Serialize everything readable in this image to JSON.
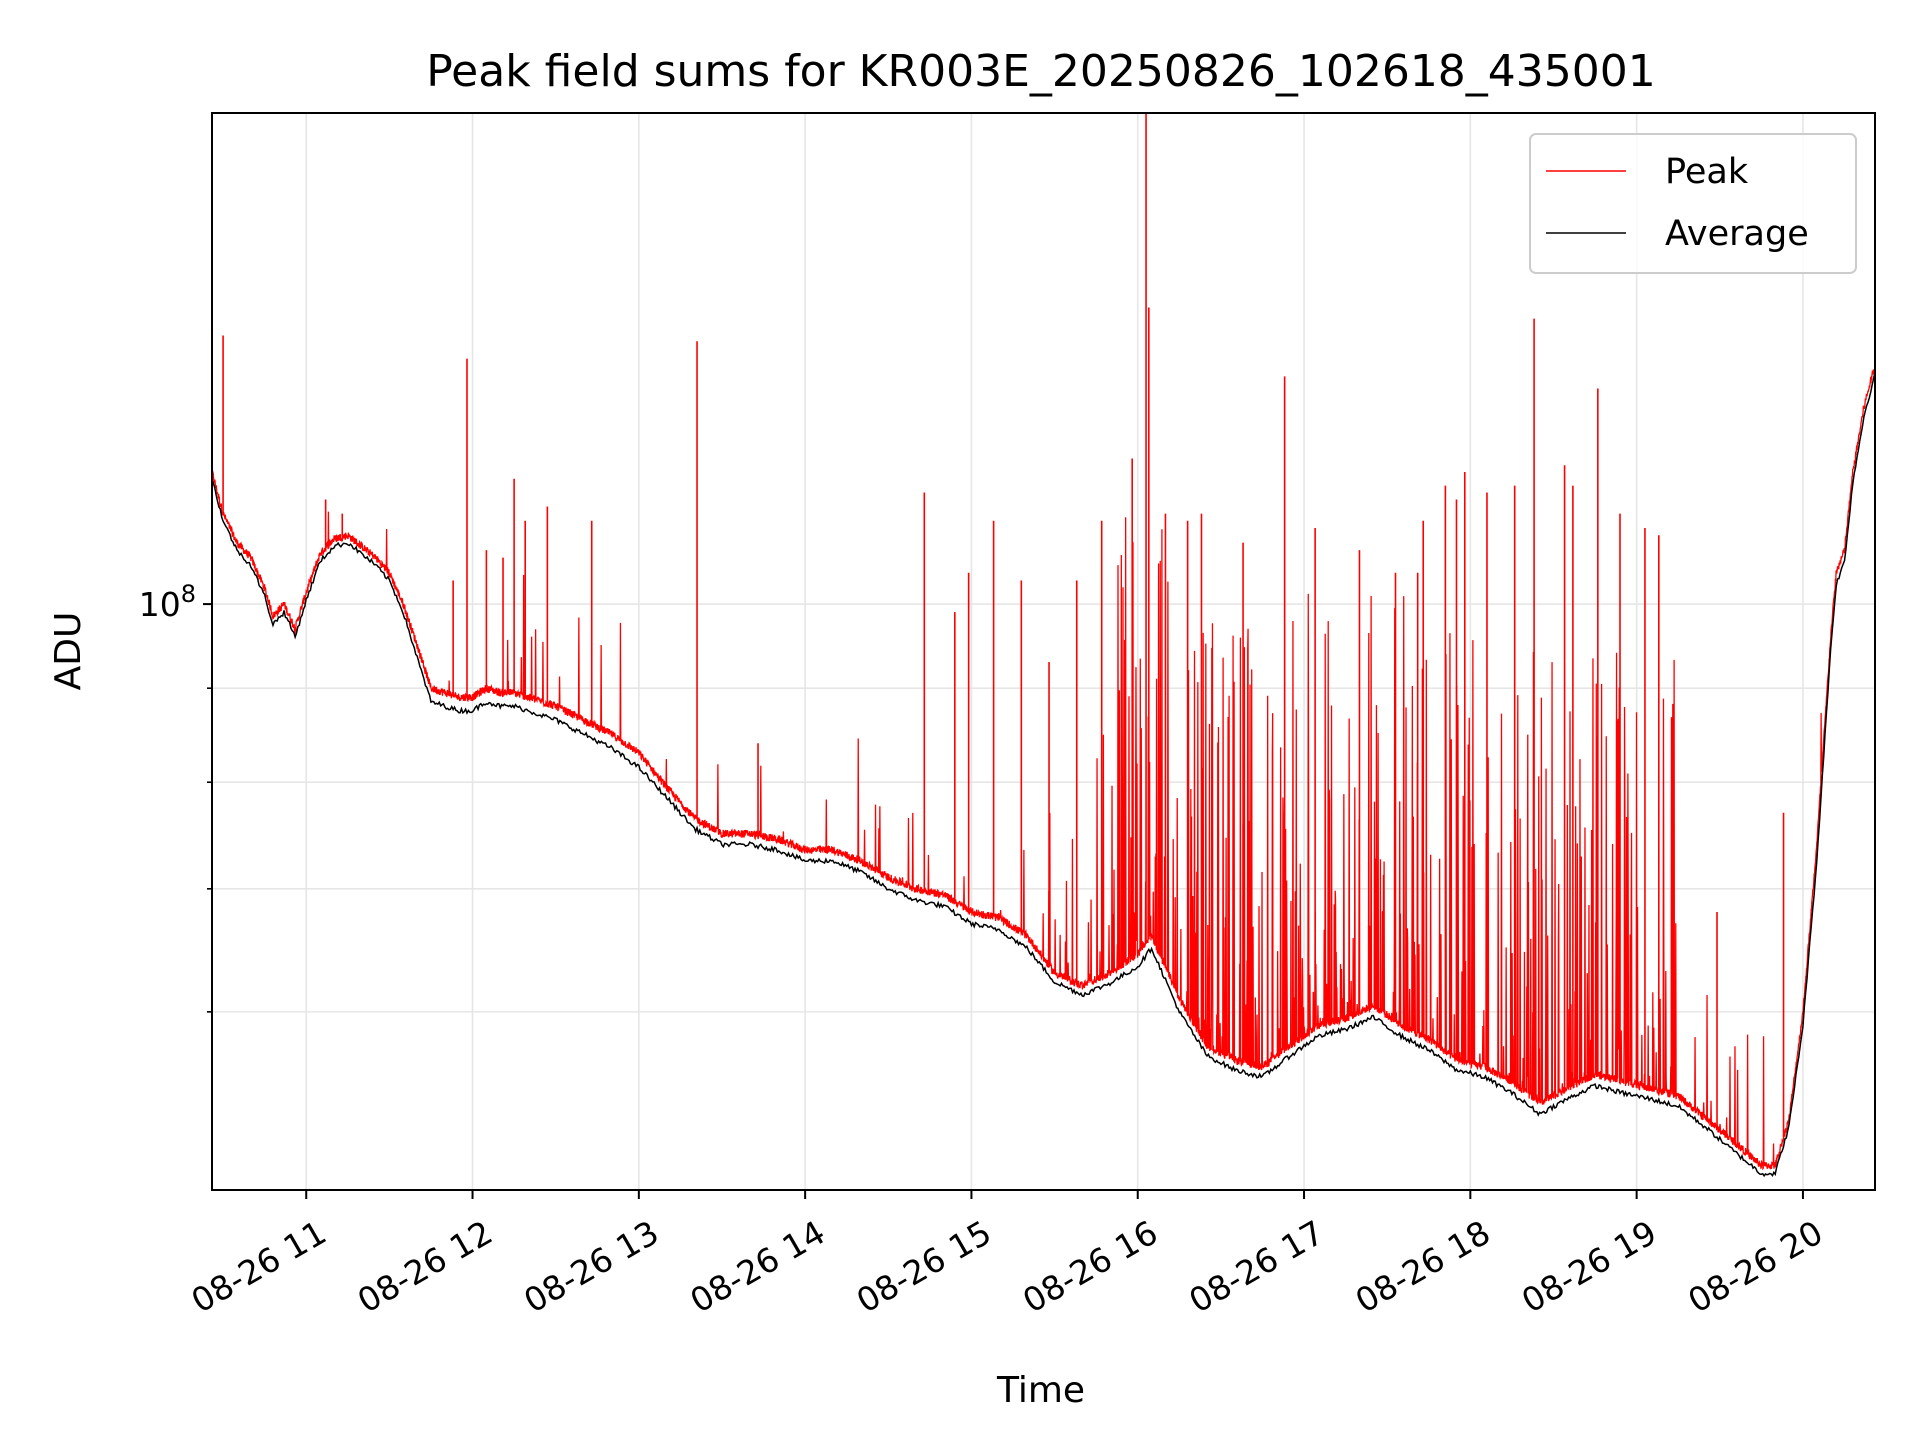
{
  "chart_data": {
    "type": "line",
    "title": "Peak field sums for KR003E_20250826_102618_435001",
    "xlabel": "Time",
    "ylabel": "ADU",
    "yscale": "log",
    "xlim": [
      "08-26 10:26",
      "08-26 20:26"
    ],
    "ylim": [
      48000000,
      185000000
    ],
    "grid": true,
    "legend_position": "top-right",
    "x_tick_labels": [
      "08-26 11",
      "08-26 12",
      "08-26 13",
      "08-26 14",
      "08-26 15",
      "08-26 16",
      "08-26 17",
      "08-26 18",
      "08-26 19",
      "08-26 20"
    ],
    "y_major_tick_label": {
      "base": "10",
      "exp": "8"
    },
    "y_major_tick_value": 100000000,
    "y_minor_tick_values": [
      90000000,
      80000000,
      70000000,
      60000000
    ],
    "series": [
      {
        "name": "Peak",
        "color": "#ff0000",
        "baseline": [
          [
            "10:26",
            118000000
          ],
          [
            "10:30",
            112000000
          ],
          [
            "10:35",
            108000000
          ],
          [
            "10:40",
            106000000
          ],
          [
            "10:45",
            102000000
          ],
          [
            "10:48",
            98500000
          ],
          [
            "10:52",
            100000000
          ],
          [
            "10:56",
            97000000
          ],
          [
            "11:00",
            101500000
          ],
          [
            "11:05",
            106500000
          ],
          [
            "11:10",
            108500000
          ],
          [
            "11:15",
            109000000
          ],
          [
            "11:20",
            107500000
          ],
          [
            "11:25",
            106000000
          ],
          [
            "11:30",
            104000000
          ],
          [
            "11:35",
            100000000
          ],
          [
            "11:40",
            95000000
          ],
          [
            "11:45",
            90000000
          ],
          [
            "11:50",
            89500000
          ],
          [
            "11:55",
            89000000
          ],
          [
            "12:00",
            89000000
          ],
          [
            "12:05",
            90000000
          ],
          [
            "12:10",
            89500000
          ],
          [
            "12:15",
            89500000
          ],
          [
            "12:20",
            89000000
          ],
          [
            "12:30",
            88000000
          ],
          [
            "12:40",
            86500000
          ],
          [
            "12:50",
            85000000
          ],
          [
            "13:00",
            83000000
          ],
          [
            "13:10",
            79500000
          ],
          [
            "13:20",
            76500000
          ],
          [
            "13:30",
            75000000
          ],
          [
            "13:40",
            75000000
          ],
          [
            "13:50",
            74500000
          ],
          [
            "14:00",
            73500000
          ],
          [
            "14:10",
            73500000
          ],
          [
            "14:20",
            72500000
          ],
          [
            "14:30",
            71000000
          ],
          [
            "14:40",
            70000000
          ],
          [
            "14:50",
            69500000
          ],
          [
            "15:00",
            68000000
          ],
          [
            "15:10",
            67500000
          ],
          [
            "15:20",
            66000000
          ],
          [
            "15:30",
            63000000
          ],
          [
            "15:40",
            62000000
          ],
          [
            "15:50",
            63000000
          ],
          [
            "16:00",
            64500000
          ],
          [
            "16:05",
            66000000
          ],
          [
            "16:15",
            61000000
          ],
          [
            "16:25",
            57500000
          ],
          [
            "16:35",
            56500000
          ],
          [
            "16:45",
            56000000
          ],
          [
            "16:55",
            57500000
          ],
          [
            "17:05",
            59000000
          ],
          [
            "17:15",
            59500000
          ],
          [
            "17:25",
            60500000
          ],
          [
            "17:35",
            59000000
          ],
          [
            "17:45",
            58000000
          ],
          [
            "17:55",
            56500000
          ],
          [
            "18:05",
            56000000
          ],
          [
            "18:15",
            55000000
          ],
          [
            "18:25",
            53500000
          ],
          [
            "18:35",
            54500000
          ],
          [
            "18:45",
            55500000
          ],
          [
            "18:55",
            55000000
          ],
          [
            "19:05",
            54500000
          ],
          [
            "19:15",
            54000000
          ],
          [
            "19:25",
            52500000
          ],
          [
            "19:35",
            51000000
          ],
          [
            "19:45",
            49500000
          ],
          [
            "19:50",
            49500000
          ],
          [
            "19:55",
            52500000
          ],
          [
            "20:00",
            60000000
          ],
          [
            "20:05",
            74000000
          ],
          [
            "20:10",
            96000000
          ],
          [
            "20:12",
            104000000
          ],
          [
            "20:15",
            107000000
          ],
          [
            "20:18",
            118000000
          ],
          [
            "20:22",
            128000000
          ],
          [
            "20:26",
            135000000
          ]
        ],
        "spikes": [
          [
            "10:30",
            140000000
          ],
          [
            "11:07",
            114000000
          ],
          [
            "11:13",
            112000000
          ],
          [
            "11:53",
            103000000
          ],
          [
            "11:58",
            136000000
          ],
          [
            "12:05",
            107000000
          ],
          [
            "12:11",
            106000000
          ],
          [
            "12:15",
            117000000
          ],
          [
            "12:19",
            111000000
          ],
          [
            "12:27",
            113000000
          ],
          [
            "12:43",
            111000000
          ],
          [
            "13:21",
            139000000
          ],
          [
            "13:43",
            84000000
          ],
          [
            "14:43",
            115000000
          ],
          [
            "14:54",
            99000000
          ],
          [
            "14:59",
            104000000
          ],
          [
            "15:08",
            111000000
          ],
          [
            "15:18",
            103000000
          ],
          [
            "15:28",
            93000000
          ],
          [
            "15:38",
            103000000
          ],
          [
            "15:47",
            111000000
          ],
          [
            "15:58",
            120000000
          ],
          [
            "16:03",
            185000000
          ],
          [
            "16:04",
            145000000
          ],
          [
            "16:10",
            112000000
          ],
          [
            "16:18",
            111000000
          ],
          [
            "16:23",
            112000000
          ],
          [
            "16:38",
            108000000
          ],
          [
            "16:53",
            133000000
          ],
          [
            "17:04",
            110000000
          ],
          [
            "17:20",
            107000000
          ],
          [
            "17:33",
            104000000
          ],
          [
            "17:41",
            104000000
          ],
          [
            "17:43",
            111000000
          ],
          [
            "17:51",
            116000000
          ],
          [
            "17:55",
            114000000
          ],
          [
            "17:58",
            118000000
          ],
          [
            "18:06",
            115000000
          ],
          [
            "18:16",
            116000000
          ],
          [
            "18:23",
            143000000
          ],
          [
            "18:34",
            119000000
          ],
          [
            "18:37",
            116000000
          ],
          [
            "18:46",
            131000000
          ],
          [
            "18:54",
            112000000
          ],
          [
            "19:03",
            110000000
          ],
          [
            "19:08",
            109000000
          ],
          [
            "19:29",
            68000000
          ],
          [
            "19:53",
            77000000
          ]
        ]
      },
      {
        "name": "Average",
        "color": "#000000",
        "baseline": [
          [
            "10:26",
            117000000
          ],
          [
            "10:30",
            111000000
          ],
          [
            "10:35",
            107000000
          ],
          [
            "10:40",
            105000000
          ],
          [
            "10:45",
            101000000
          ],
          [
            "10:48",
            97500000
          ],
          [
            "10:52",
            99000000
          ],
          [
            "10:56",
            96000000
          ],
          [
            "11:00",
            100500000
          ],
          [
            "11:05",
            105500000
          ],
          [
            "11:10",
            107500000
          ],
          [
            "11:15",
            108000000
          ],
          [
            "11:20",
            106500000
          ],
          [
            "11:25",
            105000000
          ],
          [
            "11:30",
            103000000
          ],
          [
            "11:35",
            99000000
          ],
          [
            "11:40",
            93500000
          ],
          [
            "11:45",
            88500000
          ],
          [
            "11:50",
            88000000
          ],
          [
            "11:55",
            87500000
          ],
          [
            "12:00",
            87500000
          ],
          [
            "12:05",
            88500000
          ],
          [
            "12:10",
            88000000
          ],
          [
            "12:15",
            88000000
          ],
          [
            "12:20",
            87500000
          ],
          [
            "12:30",
            86500000
          ],
          [
            "12:40",
            85000000
          ],
          [
            "12:50",
            83500000
          ],
          [
            "13:00",
            81500000
          ],
          [
            "13:10",
            78500000
          ],
          [
            "13:20",
            75500000
          ],
          [
            "13:30",
            74000000
          ],
          [
            "13:40",
            74000000
          ],
          [
            "13:50",
            73500000
          ],
          [
            "14:00",
            72500000
          ],
          [
            "14:10",
            72500000
          ],
          [
            "14:20",
            71500000
          ],
          [
            "14:30",
            70000000
          ],
          [
            "14:40",
            69000000
          ],
          [
            "14:50",
            68500000
          ],
          [
            "15:00",
            67000000
          ],
          [
            "15:10",
            66500000
          ],
          [
            "15:20",
            65000000
          ],
          [
            "15:30",
            62300000
          ],
          [
            "15:40",
            61300000
          ],
          [
            "15:50",
            62200000
          ],
          [
            "16:00",
            63500000
          ],
          [
            "16:05",
            65000000
          ],
          [
            "16:15",
            60000000
          ],
          [
            "16:25",
            56800000
          ],
          [
            "16:35",
            55800000
          ],
          [
            "16:45",
            55300000
          ],
          [
            "16:55",
            56800000
          ],
          [
            "17:05",
            58200000
          ],
          [
            "17:15",
            58700000
          ],
          [
            "17:25",
            59600000
          ],
          [
            "17:35",
            58200000
          ],
          [
            "17:45",
            57200000
          ],
          [
            "17:55",
            55800000
          ],
          [
            "18:05",
            55300000
          ],
          [
            "18:15",
            54200000
          ],
          [
            "18:25",
            52800000
          ],
          [
            "18:35",
            53800000
          ],
          [
            "18:45",
            54700000
          ],
          [
            "18:55",
            54200000
          ],
          [
            "19:05",
            53800000
          ],
          [
            "19:15",
            53300000
          ],
          [
            "19:25",
            51900000
          ],
          [
            "19:35",
            50400000
          ],
          [
            "19:45",
            49000000
          ],
          [
            "19:50",
            49000000
          ],
          [
            "19:55",
            52000000
          ],
          [
            "20:00",
            59000000
          ],
          [
            "20:05",
            72500000
          ],
          [
            "20:10",
            94500000
          ],
          [
            "20:12",
            102500000
          ],
          [
            "20:15",
            105500000
          ],
          [
            "20:18",
            116500000
          ],
          [
            "20:22",
            126500000
          ],
          [
            "20:26",
            133500000
          ]
        ]
      }
    ]
  }
}
